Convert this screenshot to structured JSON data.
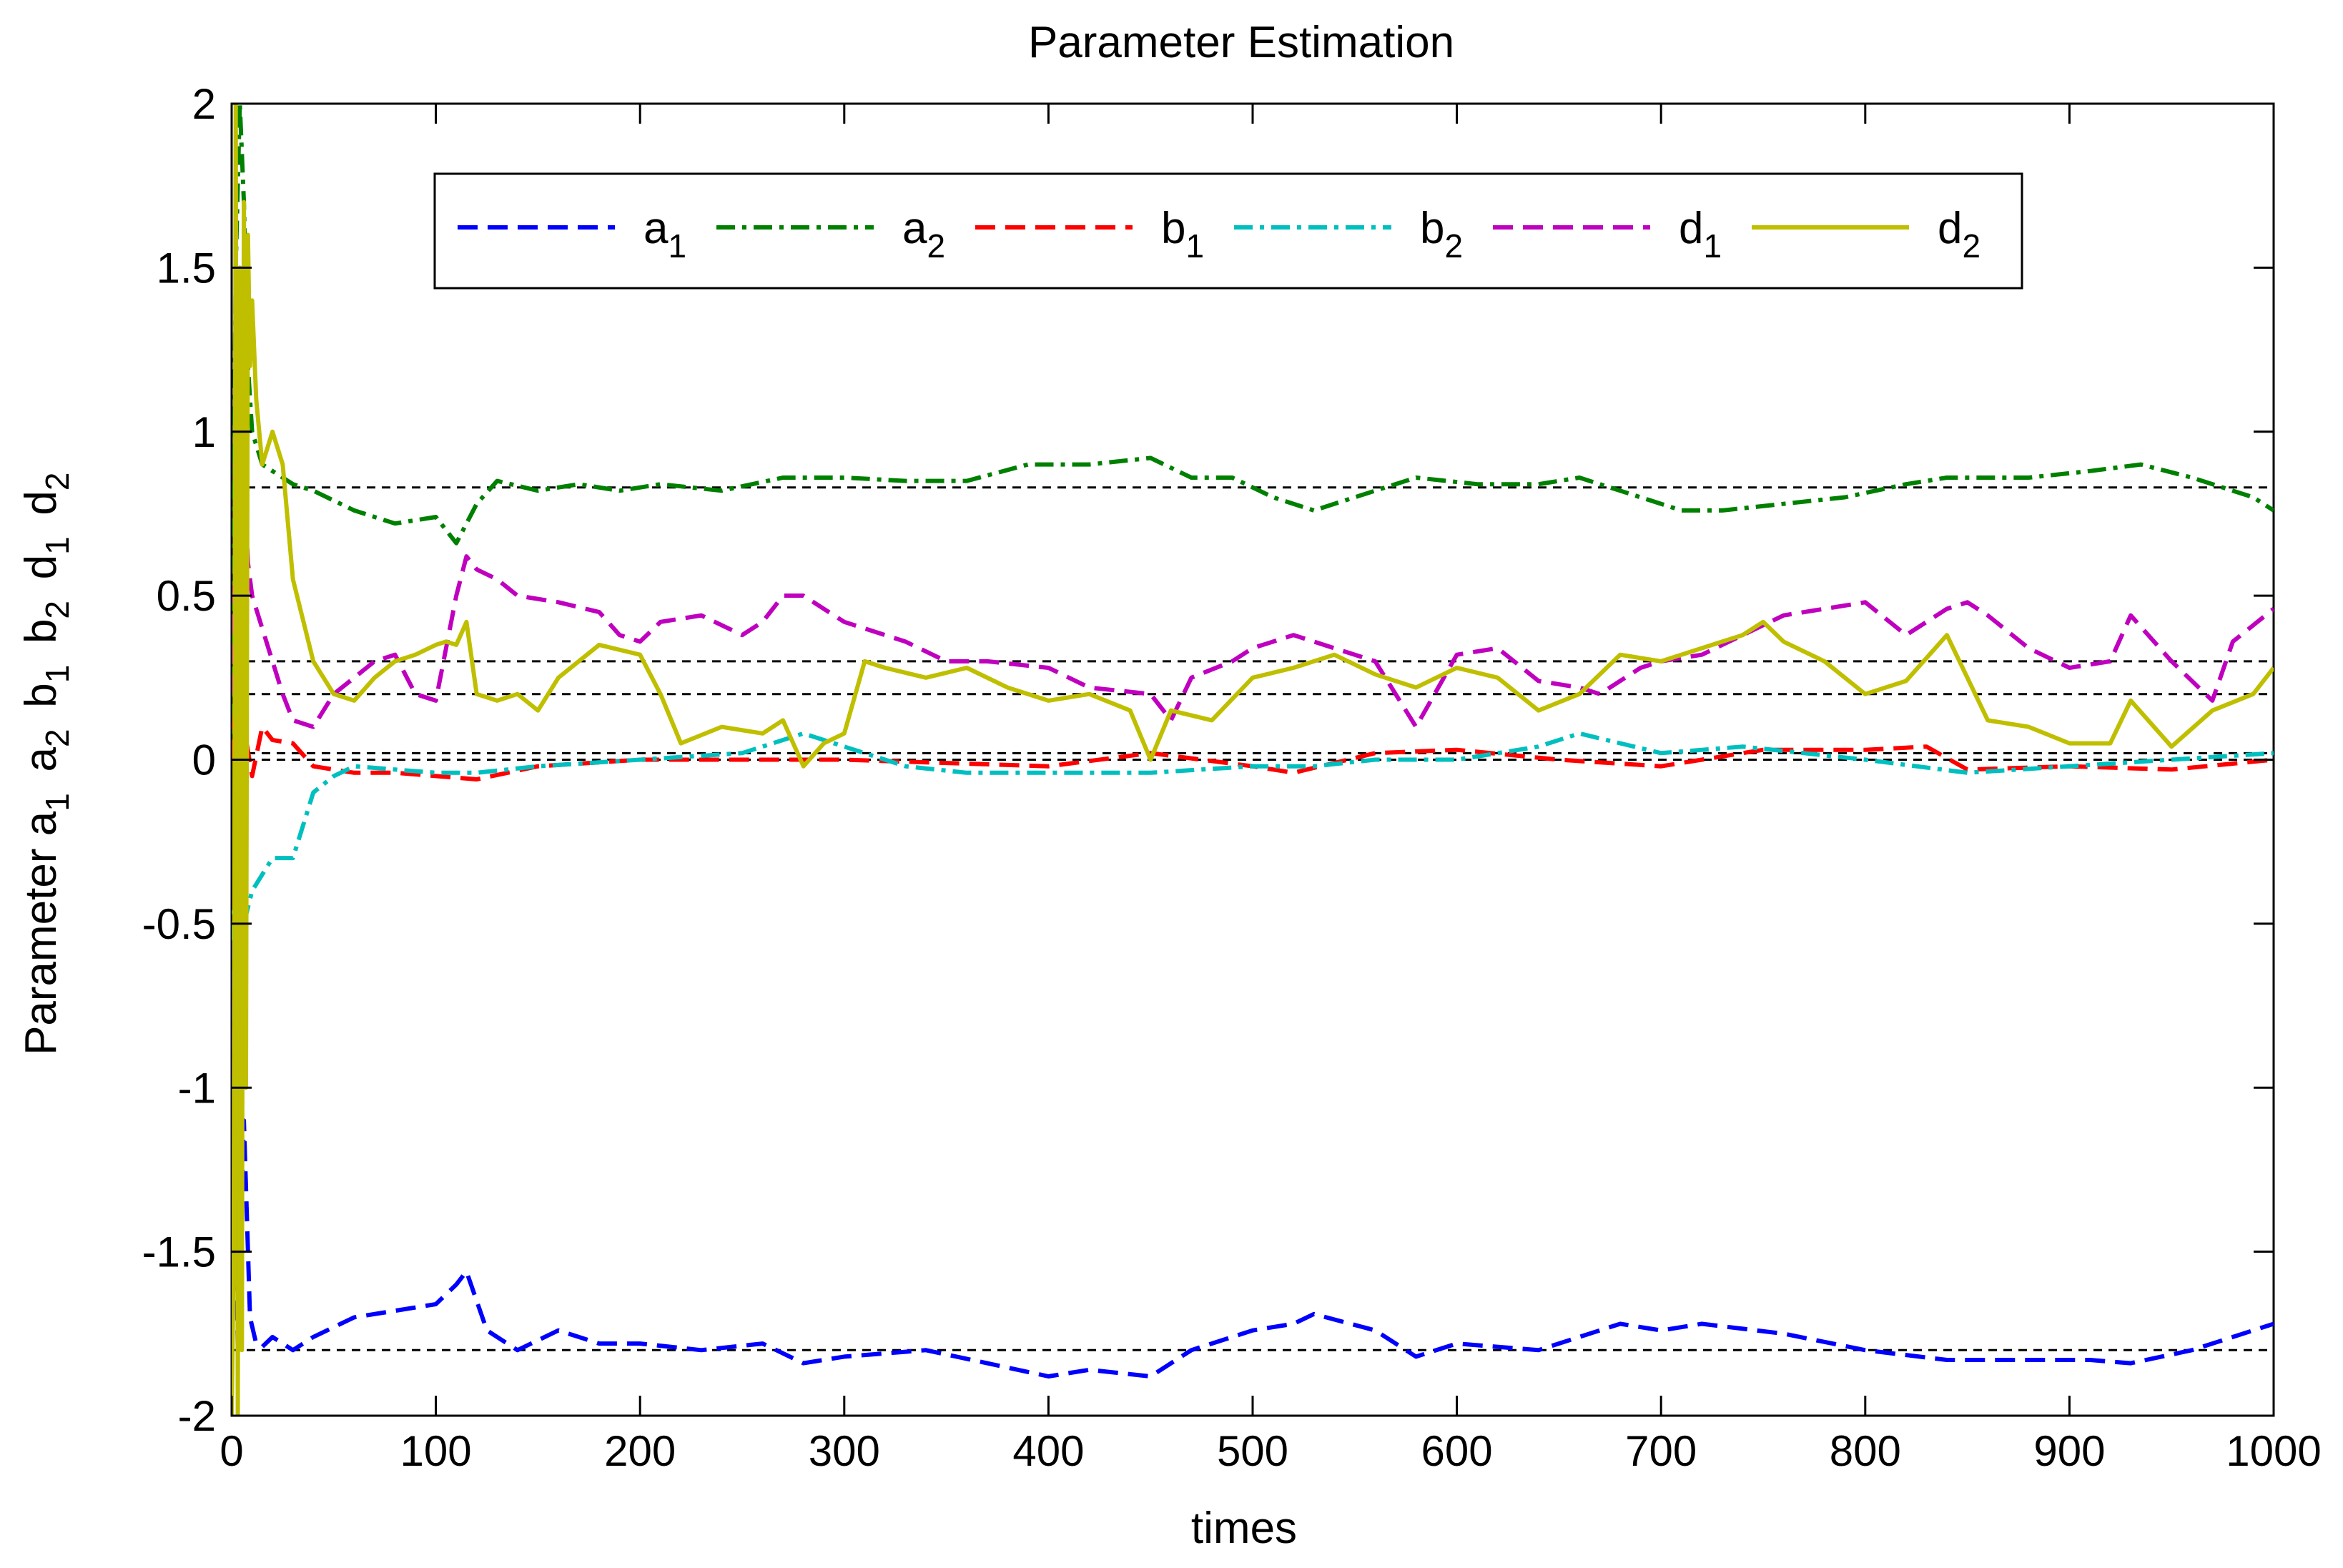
{
  "chart_data": {
    "type": "line",
    "title": "Parameter Estimation",
    "xlabel": "times",
    "ylabel_parts": [
      {
        "text": "Parameter a",
        "sub": "1"
      },
      {
        "text": " a",
        "sub": "2"
      },
      {
        "text": " b",
        "sub": "1"
      },
      {
        "text": " b",
        "sub": "2"
      },
      {
        "text": " d",
        "sub": "1"
      },
      {
        "text": " d",
        "sub": "2"
      }
    ],
    "xlim": [
      0,
      1000
    ],
    "ylim": [
      -2,
      2
    ],
    "xticks": [
      0,
      100,
      200,
      300,
      400,
      500,
      600,
      700,
      800,
      900,
      1000
    ],
    "xtick_labels": [
      "0",
      "100",
      "200",
      "300",
      "400",
      "500",
      "600",
      "700",
      "800",
      "900",
      "1000"
    ],
    "yticks": [
      -2,
      -1.5,
      -1,
      -0.5,
      0,
      0.5,
      1,
      1.5,
      2
    ],
    "ytick_labels": [
      "-2",
      "-1.5",
      "-1",
      "-0.5",
      "0",
      "0.5",
      "1",
      "1.5",
      "2"
    ],
    "grid": false,
    "legend_position": "top-center, single row",
    "true_values": [
      -1.8,
      0.83,
      0.0,
      0.02,
      0.3,
      0.2
    ],
    "series": [
      {
        "name": "a",
        "sub": "1",
        "color": "#0000ff",
        "style": "dashed",
        "x": [
          0,
          3,
          6,
          9,
          12,
          15,
          20,
          30,
          40,
          60,
          80,
          100,
          110,
          115,
          125,
          140,
          160,
          180,
          200,
          230,
          260,
          280,
          300,
          340,
          370,
          400,
          420,
          450,
          470,
          500,
          520,
          530,
          560,
          580,
          600,
          640,
          680,
          700,
          720,
          760,
          800,
          840,
          880,
          910,
          930,
          960,
          990,
          1000
        ],
        "values": [
          -0.55,
          -1.8,
          -1.1,
          -1.7,
          -1.78,
          -1.79,
          -1.76,
          -1.8,
          -1.76,
          -1.7,
          -1.68,
          -1.66,
          -1.6,
          -1.56,
          -1.74,
          -1.8,
          -1.74,
          -1.78,
          -1.78,
          -1.8,
          -1.78,
          -1.84,
          -1.82,
          -1.8,
          -1.84,
          -1.88,
          -1.86,
          -1.88,
          -1.8,
          -1.74,
          -1.72,
          -1.69,
          -1.74,
          -1.82,
          -1.78,
          -1.8,
          -1.72,
          -1.74,
          -1.72,
          -1.75,
          -1.8,
          -1.83,
          -1.83,
          -1.83,
          -1.84,
          -1.8,
          -1.74,
          -1.72
        ]
      },
      {
        "name": "a",
        "sub": "2",
        "color": "#008000",
        "style": "dashdot",
        "x": [
          0,
          2,
          4,
          6,
          8,
          10,
          15,
          20,
          30,
          40,
          60,
          80,
          100,
          110,
          120,
          130,
          150,
          170,
          190,
          210,
          240,
          270,
          300,
          330,
          360,
          390,
          420,
          450,
          470,
          490,
          510,
          530,
          560,
          580,
          610,
          640,
          660,
          690,
          710,
          730,
          760,
          790,
          820,
          840,
          880,
          910,
          935,
          960,
          990,
          1000
        ],
        "values": [
          0.0,
          1.5,
          2.0,
          1.7,
          1.2,
          1.0,
          0.9,
          0.88,
          0.84,
          0.82,
          0.76,
          0.72,
          0.74,
          0.66,
          0.78,
          0.85,
          0.82,
          0.84,
          0.82,
          0.84,
          0.82,
          0.86,
          0.86,
          0.85,
          0.85,
          0.9,
          0.9,
          0.92,
          0.86,
          0.86,
          0.8,
          0.76,
          0.82,
          0.86,
          0.84,
          0.84,
          0.86,
          0.8,
          0.76,
          0.76,
          0.78,
          0.8,
          0.84,
          0.86,
          0.86,
          0.88,
          0.9,
          0.86,
          0.8,
          0.76
        ]
      },
      {
        "name": "b",
        "sub": "1",
        "color": "#ff0000",
        "style": "dashed",
        "x": [
          0,
          3,
          6,
          10,
          15,
          20,
          30,
          40,
          60,
          80,
          100,
          120,
          150,
          200,
          250,
          300,
          350,
          400,
          450,
          500,
          520,
          560,
          600,
          650,
          700,
          750,
          800,
          830,
          850,
          900,
          950,
          1000
        ],
        "values": [
          0.0,
          0.3,
          0.1,
          -0.05,
          0.1,
          0.06,
          0.05,
          -0.02,
          -0.04,
          -0.04,
          -0.05,
          -0.06,
          -0.02,
          0.0,
          0.0,
          0.0,
          -0.01,
          -0.02,
          0.02,
          -0.02,
          -0.04,
          0.02,
          0.03,
          0.0,
          -0.02,
          0.03,
          0.03,
          0.04,
          -0.03,
          -0.02,
          -0.03,
          0.0
        ]
      },
      {
        "name": "b",
        "sub": "2",
        "color": "#00bfbf",
        "style": "dashdot",
        "x": [
          0,
          3,
          6,
          10,
          15,
          20,
          30,
          40,
          50,
          60,
          80,
          100,
          120,
          150,
          200,
          250,
          280,
          300,
          330,
          360,
          400,
          450,
          500,
          530,
          560,
          600,
          640,
          660,
          700,
          740,
          770,
          800,
          850,
          900,
          950,
          1000
        ],
        "values": [
          -0.55,
          -0.3,
          -0.5,
          -0.4,
          -0.35,
          -0.3,
          -0.3,
          -0.1,
          -0.05,
          -0.02,
          -0.03,
          -0.04,
          -0.04,
          -0.02,
          0.0,
          0.02,
          0.08,
          0.04,
          -0.02,
          -0.04,
          -0.04,
          -0.04,
          -0.02,
          -0.02,
          0.0,
          0.0,
          0.04,
          0.08,
          0.02,
          0.04,
          0.02,
          0.0,
          -0.04,
          -0.02,
          0.0,
          0.02
        ]
      },
      {
        "name": "d",
        "sub": "1",
        "color": "#bf00bf",
        "style": "dashed",
        "x": [
          0,
          2,
          4,
          6,
          8,
          10,
          15,
          20,
          25,
          30,
          40,
          50,
          60,
          70,
          80,
          90,
          100,
          110,
          115,
          120,
          130,
          140,
          160,
          180,
          190,
          200,
          210,
          230,
          250,
          260,
          270,
          280,
          290,
          300,
          310,
          330,
          350,
          370,
          400,
          420,
          450,
          460,
          470,
          490,
          500,
          520,
          530,
          560,
          580,
          600,
          620,
          640,
          660,
          670,
          690,
          700,
          720,
          740,
          760,
          780,
          800,
          820,
          840,
          850,
          860,
          880,
          900,
          920,
          930,
          950,
          970,
          980,
          1000
        ],
        "values": [
          0.2,
          0.7,
          1.2,
          0.9,
          0.6,
          0.5,
          0.4,
          0.3,
          0.2,
          0.12,
          0.1,
          0.2,
          0.25,
          0.3,
          0.32,
          0.2,
          0.18,
          0.5,
          0.62,
          0.58,
          0.55,
          0.5,
          0.48,
          0.45,
          0.38,
          0.36,
          0.42,
          0.44,
          0.38,
          0.42,
          0.5,
          0.5,
          0.46,
          0.42,
          0.4,
          0.36,
          0.3,
          0.3,
          0.28,
          0.22,
          0.2,
          0.12,
          0.25,
          0.3,
          0.34,
          0.38,
          0.36,
          0.3,
          0.1,
          0.32,
          0.34,
          0.24,
          0.22,
          0.2,
          0.28,
          0.3,
          0.32,
          0.38,
          0.44,
          0.46,
          0.48,
          0.38,
          0.46,
          0.48,
          0.44,
          0.34,
          0.28,
          0.3,
          0.44,
          0.3,
          0.18,
          0.36,
          0.46
        ]
      },
      {
        "name": "d",
        "sub": "2",
        "color": "#bfbf00",
        "style": "solid",
        "x": [
          0,
          1,
          2,
          3,
          4,
          5,
          6,
          7,
          8,
          9,
          10,
          12,
          15,
          20,
          25,
          30,
          40,
          50,
          60,
          70,
          80,
          90,
          100,
          105,
          110,
          115,
          120,
          130,
          140,
          150,
          160,
          170,
          180,
          200,
          210,
          220,
          240,
          260,
          270,
          280,
          290,
          300,
          310,
          320,
          340,
          360,
          380,
          400,
          420,
          440,
          450,
          460,
          480,
          500,
          520,
          540,
          560,
          580,
          600,
          620,
          640,
          660,
          680,
          700,
          720,
          740,
          750,
          760,
          780,
          800,
          820,
          840,
          860,
          880,
          900,
          920,
          930,
          950,
          970,
          990,
          1000
        ],
        "values": [
          -2.0,
          -1.5,
          2.0,
          -2.0,
          1.5,
          -1.8,
          1.7,
          -1.0,
          1.6,
          1.2,
          1.4,
          1.1,
          0.9,
          1.0,
          0.9,
          0.55,
          0.3,
          0.2,
          0.18,
          0.25,
          0.3,
          0.32,
          0.35,
          0.36,
          0.35,
          0.42,
          0.2,
          0.18,
          0.2,
          0.15,
          0.25,
          0.3,
          0.35,
          0.32,
          0.2,
          0.05,
          0.1,
          0.08,
          0.12,
          -0.02,
          0.05,
          0.08,
          0.3,
          0.28,
          0.25,
          0.28,
          0.22,
          0.18,
          0.2,
          0.15,
          0.0,
          0.15,
          0.12,
          0.25,
          0.28,
          0.32,
          0.26,
          0.22,
          0.28,
          0.25,
          0.15,
          0.2,
          0.32,
          0.3,
          0.34,
          0.38,
          0.42,
          0.36,
          0.3,
          0.2,
          0.24,
          0.38,
          0.12,
          0.1,
          0.05,
          0.05,
          0.18,
          0.04,
          0.15,
          0.2,
          0.28
        ]
      }
    ]
  }
}
